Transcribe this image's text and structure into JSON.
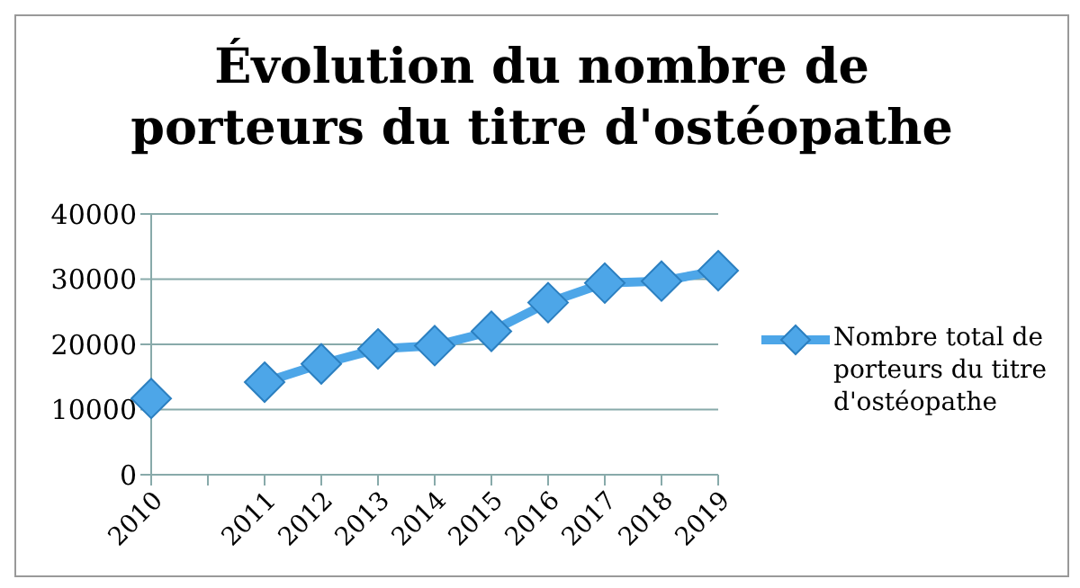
{
  "chart_data": {
    "type": "line",
    "title": "Évolution du nombre de porteurs du titre d'ostéopathe",
    "categories": [
      "2010",
      null,
      "2011",
      "2012",
      "2013",
      "2014",
      "2015",
      "2016",
      "2017",
      "2018",
      "2019"
    ],
    "series": [
      {
        "name": "Nombre total de porteurs du titre d'ostéopathe",
        "color": "#4da6e8",
        "values": [
          11700,
          null,
          14200,
          17000,
          19300,
          19800,
          22000,
          26400,
          29400,
          29700,
          31300
        ]
      }
    ],
    "ylim": [
      0,
      40000
    ],
    "yticks": [
      0,
      10000,
      20000,
      30000,
      40000
    ],
    "grid": "y",
    "legend": "right",
    "marker": "diamond",
    "line_style": "solid"
  }
}
